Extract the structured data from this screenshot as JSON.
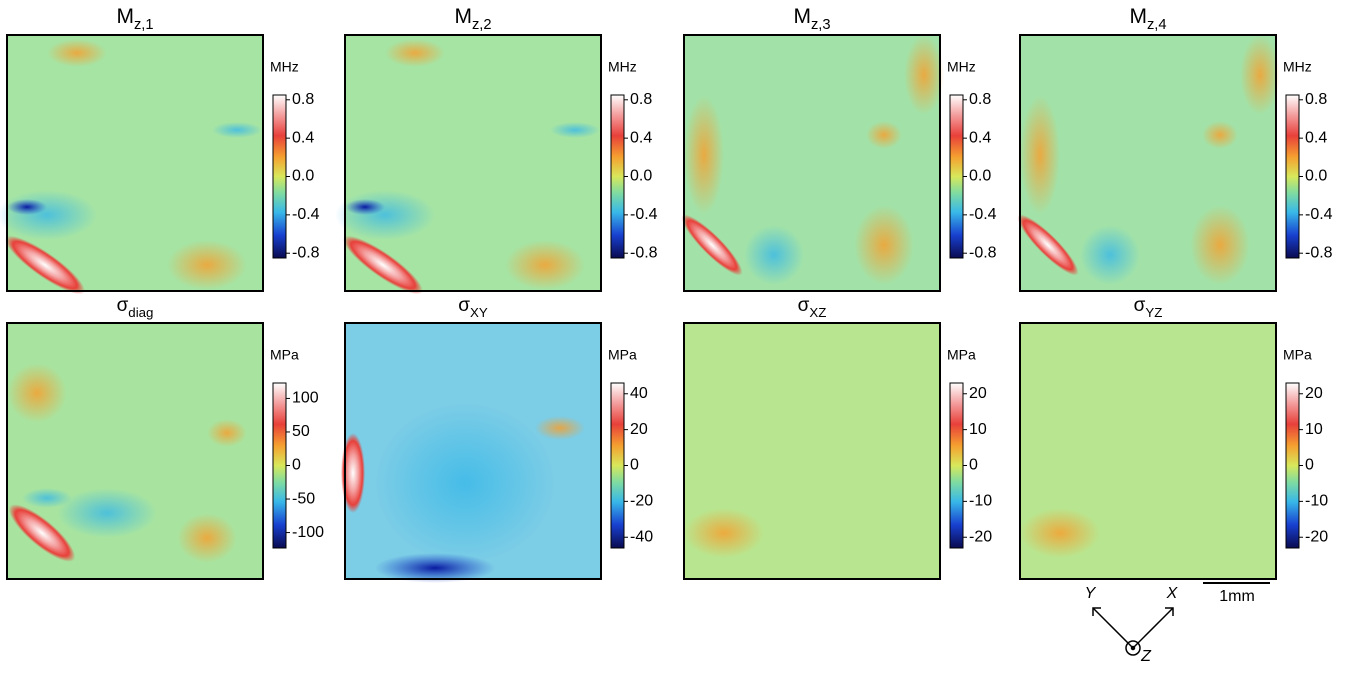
{
  "panels": [
    {
      "title": "M",
      "subscript": "z,1",
      "unit": "MHz",
      "lim": [
        -0.85,
        0.85
      ],
      "ticks": [
        0.8,
        0.4,
        {
          "value": 0,
          "label": "0.0"
        },
        -0.4,
        -0.8
      ]
    },
    {
      "title": "M",
      "subscript": "z,2",
      "unit": "MHz",
      "lim": [
        -0.85,
        0.85
      ],
      "ticks": [
        0.8,
        0.4,
        {
          "value": 0,
          "label": "0.0"
        },
        -0.4,
        -0.8
      ]
    },
    {
      "title": "M",
      "subscript": "z,3",
      "unit": "MHz",
      "lim": [
        -0.85,
        0.85
      ],
      "ticks": [
        0.8,
        0.4,
        {
          "value": 0,
          "label": "0.0"
        },
        -0.4,
        -0.8
      ]
    },
    {
      "title": "M",
      "subscript": "z,4",
      "unit": "MHz",
      "lim": [
        -0.85,
        0.85
      ],
      "ticks": [
        0.8,
        0.4,
        {
          "value": 0,
          "label": "0.0"
        },
        -0.4,
        -0.8
      ]
    },
    {
      "title": "σ",
      "subscript": "diag",
      "unit": "MPa",
      "lim": [
        -123,
        123
      ],
      "ticks": [
        100,
        50,
        0,
        -50,
        -100
      ]
    },
    {
      "title": "σ",
      "subscript": "XY",
      "unit": "MPa",
      "lim": [
        -46,
        46
      ],
      "ticks": [
        40,
        20,
        0,
        -20,
        -40
      ]
    },
    {
      "title": "σ",
      "subscript": "XZ",
      "unit": "MPa",
      "lim": [
        -23,
        23
      ],
      "ticks": [
        20,
        10,
        0,
        -10,
        -20
      ]
    },
    {
      "title": "σ",
      "subscript": "YZ",
      "unit": "MPa",
      "lim": [
        -23,
        23
      ],
      "ticks": [
        20,
        10,
        0,
        -10,
        -20
      ]
    }
  ],
  "scale_bar": "1mm",
  "axes": {
    "x": "X",
    "y": "Y",
    "z": "Z"
  }
}
